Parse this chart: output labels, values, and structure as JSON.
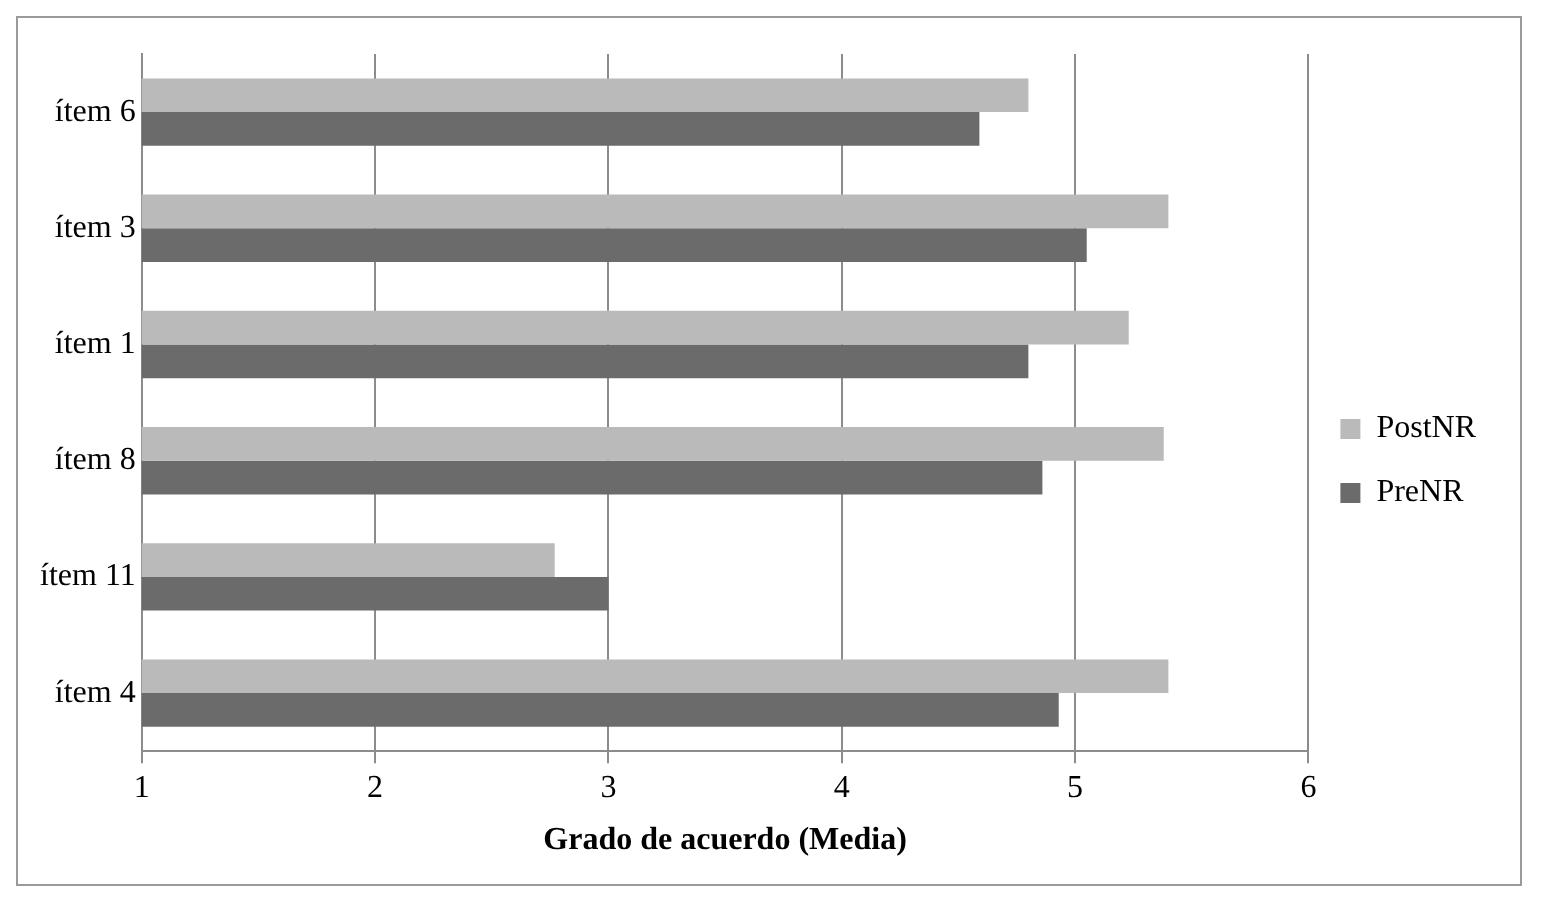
{
  "chart_data": {
    "type": "bar",
    "orientation": "horizontal",
    "xlabel": "Grado de acuerdo (Media)",
    "categories": [
      "ítem 6",
      "ítem 3",
      "ítem 1",
      "ítem 8",
      "ítem 11",
      "ítem 4"
    ],
    "series": [
      {
        "name": "PostNR",
        "color": "#bababa",
        "values": [
          4.8,
          5.4,
          5.23,
          5.38,
          2.77,
          5.4
        ]
      },
      {
        "name": "PreNR",
        "color": "#6b6b6b",
        "values": [
          4.59,
          5.05,
          4.8,
          4.86,
          3.0,
          4.93
        ]
      }
    ],
    "xlim": [
      1,
      6
    ],
    "xticks": [
      1,
      2,
      3,
      4,
      5,
      6
    ],
    "grid": "x",
    "legend": "right"
  }
}
